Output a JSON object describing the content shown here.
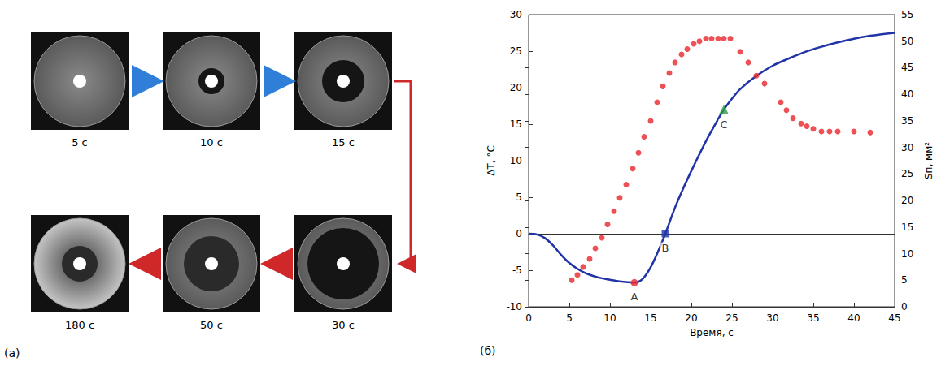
{
  "panel_a": {
    "label": "(а)",
    "frames": [
      {
        "time": "5 с"
      },
      {
        "time": "10 с"
      },
      {
        "time": "15 с"
      },
      {
        "time": "30 с"
      },
      {
        "time": "50 с"
      },
      {
        "time": "180 с"
      }
    ]
  },
  "chart_data": {
    "type": "line",
    "panel_label": "(б)",
    "xlabel": "Время, с",
    "ylabel": "ΔT, °C",
    "y2label": "Sп, мм²",
    "xlim": [
      0,
      45
    ],
    "xticks": [
      0,
      5,
      10,
      15,
      20,
      25,
      30,
      35,
      40,
      45
    ],
    "ylim": [
      -10,
      30
    ],
    "yticks": [
      -10,
      -5,
      0,
      5,
      10,
      15,
      20,
      25,
      30
    ],
    "y2lim": [
      0,
      55
    ],
    "y2ticks": [
      0,
      5,
      10,
      15,
      20,
      25,
      30,
      35,
      40,
      45,
      50,
      55
    ],
    "grid": false,
    "series": [
      {
        "type": "line",
        "color": "#2034a8",
        "marker": "none",
        "line_style": "solid",
        "x": [
          0,
          1,
          2,
          3,
          4,
          5,
          6,
          7,
          8,
          9,
          10,
          11,
          12,
          13,
          14,
          15,
          16,
          16.8,
          18,
          19,
          20,
          21,
          22,
          23,
          24,
          25,
          26,
          28,
          30,
          32,
          34,
          36,
          38,
          40,
          42,
          45
        ],
        "values": [
          0,
          -0.1,
          -0.6,
          -1.6,
          -2.9,
          -4,
          -4.8,
          -5.4,
          -5.8,
          -6.1,
          -6.3,
          -6.5,
          -6.6,
          -6.7,
          -6.2,
          -4.6,
          -2.2,
          0,
          3.6,
          6.2,
          8.6,
          10.9,
          13.1,
          15.1,
          17,
          18.5,
          19.8,
          21.6,
          23,
          24,
          24.9,
          25.6,
          26.2,
          26.7,
          27.1,
          27.5
        ]
      },
      {
        "type": "scatter",
        "color": "#e8262a",
        "marker": "circle",
        "axis": "y2",
        "x": [
          5.3,
          6,
          6.7,
          7.5,
          8.2,
          9,
          9.7,
          10.5,
          11.2,
          12,
          12.8,
          13.5,
          14.2,
          15,
          15.8,
          16.5,
          17.3,
          18,
          18.8,
          19.5,
          20.3,
          21,
          21.8,
          22.5,
          23.3,
          24,
          24.8,
          26,
          27,
          28,
          29,
          31,
          31.7,
          32.5,
          33.5,
          34.2,
          35,
          36,
          37,
          38,
          40,
          42
        ],
        "values": [
          5,
          6,
          7.5,
          9,
          11,
          13,
          15.5,
          18,
          20.5,
          23,
          26,
          29,
          32,
          35,
          38.5,
          41.5,
          44,
          46,
          47.5,
          48.5,
          49.5,
          50,
          50.5,
          50.5,
          50.5,
          50.5,
          50.5,
          48,
          46,
          43.5,
          42,
          38.5,
          37,
          35.5,
          34.5,
          34,
          33.5,
          33,
          33,
          33,
          33,
          32.8
        ]
      }
    ],
    "annotations": [
      {
        "text": "A",
        "x": 13,
        "y": -6.7,
        "marker": "circle",
        "color": "#e8262a"
      },
      {
        "text": "B",
        "x": 16.8,
        "y": 0,
        "marker": "rect",
        "color": "#2034a8"
      },
      {
        "text": "C",
        "x": 24,
        "y": 17,
        "marker": "triangle",
        "color": "#2f9e44"
      }
    ]
  }
}
